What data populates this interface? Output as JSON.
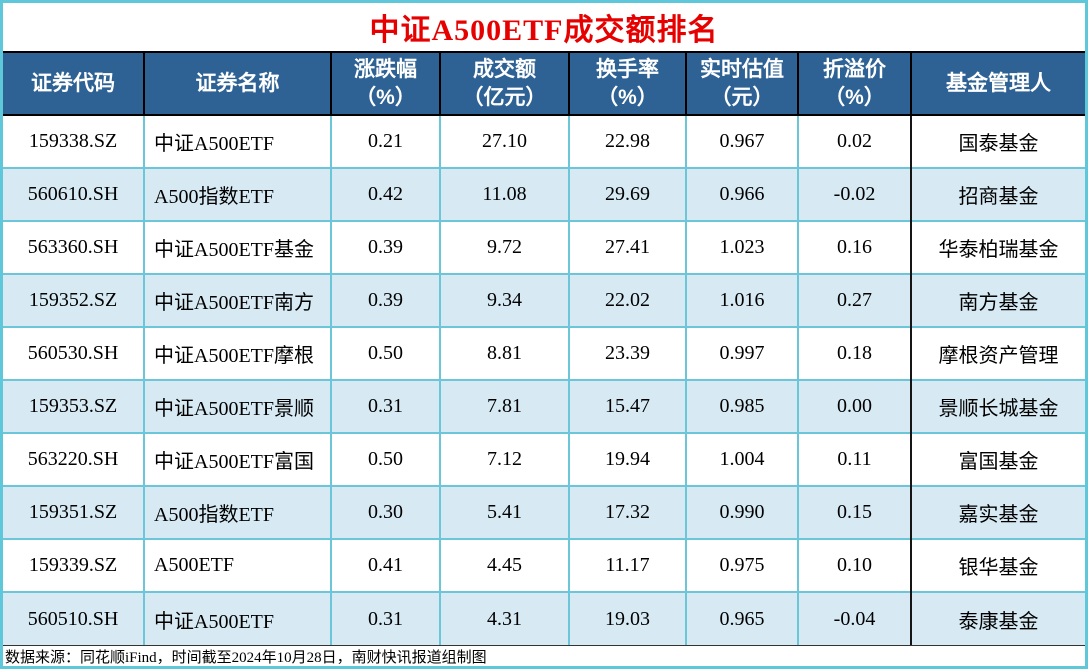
{
  "title": "中证A500ETF成交额排名",
  "colors": {
    "title_text": "#e60000",
    "header_bg": "#2f6294",
    "header_text": "#ffffff",
    "row_alt_bg": "#d7eaf4",
    "outer_border": "#5ec7da",
    "grid_line": "#6cc6da",
    "dark_separator": "#151515"
  },
  "table": {
    "columns": [
      {
        "label": "证券代码",
        "sub": ""
      },
      {
        "label": "证券名称",
        "sub": ""
      },
      {
        "label": "涨跌幅",
        "sub": "（%）"
      },
      {
        "label": "成交额",
        "sub": "（亿元）"
      },
      {
        "label": "换手率",
        "sub": "（%）"
      },
      {
        "label": "实时估值",
        "sub": "（元）"
      },
      {
        "label": "折溢价",
        "sub": "（%）"
      },
      {
        "label": "基金管理人",
        "sub": ""
      }
    ]
  },
  "chart_data": {
    "type": "table",
    "title": "中证A500ETF成交额排名",
    "columns": [
      "证券代码",
      "证券名称",
      "涨跌幅（%）",
      "成交额（亿元）",
      "换手率（%）",
      "实时估值（元）",
      "折溢价（%）",
      "基金管理人"
    ],
    "rows": [
      [
        "159338.SZ",
        "中证A500ETF",
        "0.21",
        "27.10",
        "22.98",
        "0.967",
        "0.02",
        "国泰基金"
      ],
      [
        "560610.SH",
        "A500指数ETF",
        "0.42",
        "11.08",
        "29.69",
        "0.966",
        "-0.02",
        "招商基金"
      ],
      [
        "563360.SH",
        "中证A500ETF基金",
        "0.39",
        "9.72",
        "27.41",
        "1.023",
        "0.16",
        "华泰柏瑞基金"
      ],
      [
        "159352.SZ",
        "中证A500ETF南方",
        "0.39",
        "9.34",
        "22.02",
        "1.016",
        "0.27",
        "南方基金"
      ],
      [
        "560530.SH",
        "中证A500ETF摩根",
        "0.50",
        "8.81",
        "23.39",
        "0.997",
        "0.18",
        "摩根资产管理"
      ],
      [
        "159353.SZ",
        "中证A500ETF景顺",
        "0.31",
        "7.81",
        "15.47",
        "0.985",
        "0.00",
        "景顺长城基金"
      ],
      [
        "563220.SH",
        "中证A500ETF富国",
        "0.50",
        "7.12",
        "19.94",
        "1.004",
        "0.11",
        "富国基金"
      ],
      [
        "159351.SZ",
        "A500指数ETF",
        "0.30",
        "5.41",
        "17.32",
        "0.990",
        "0.15",
        "嘉实基金"
      ],
      [
        "159339.SZ",
        "A500ETF",
        "0.41",
        "4.45",
        "11.17",
        "0.975",
        "0.10",
        "银华基金"
      ],
      [
        "560510.SH",
        "中证A500ETF",
        "0.31",
        "4.31",
        "19.03",
        "0.965",
        "-0.04",
        "泰康基金"
      ]
    ]
  },
  "footer": "数据来源：同花顺iFind，时间截至2024年10月28日，南财快讯报道组制图"
}
